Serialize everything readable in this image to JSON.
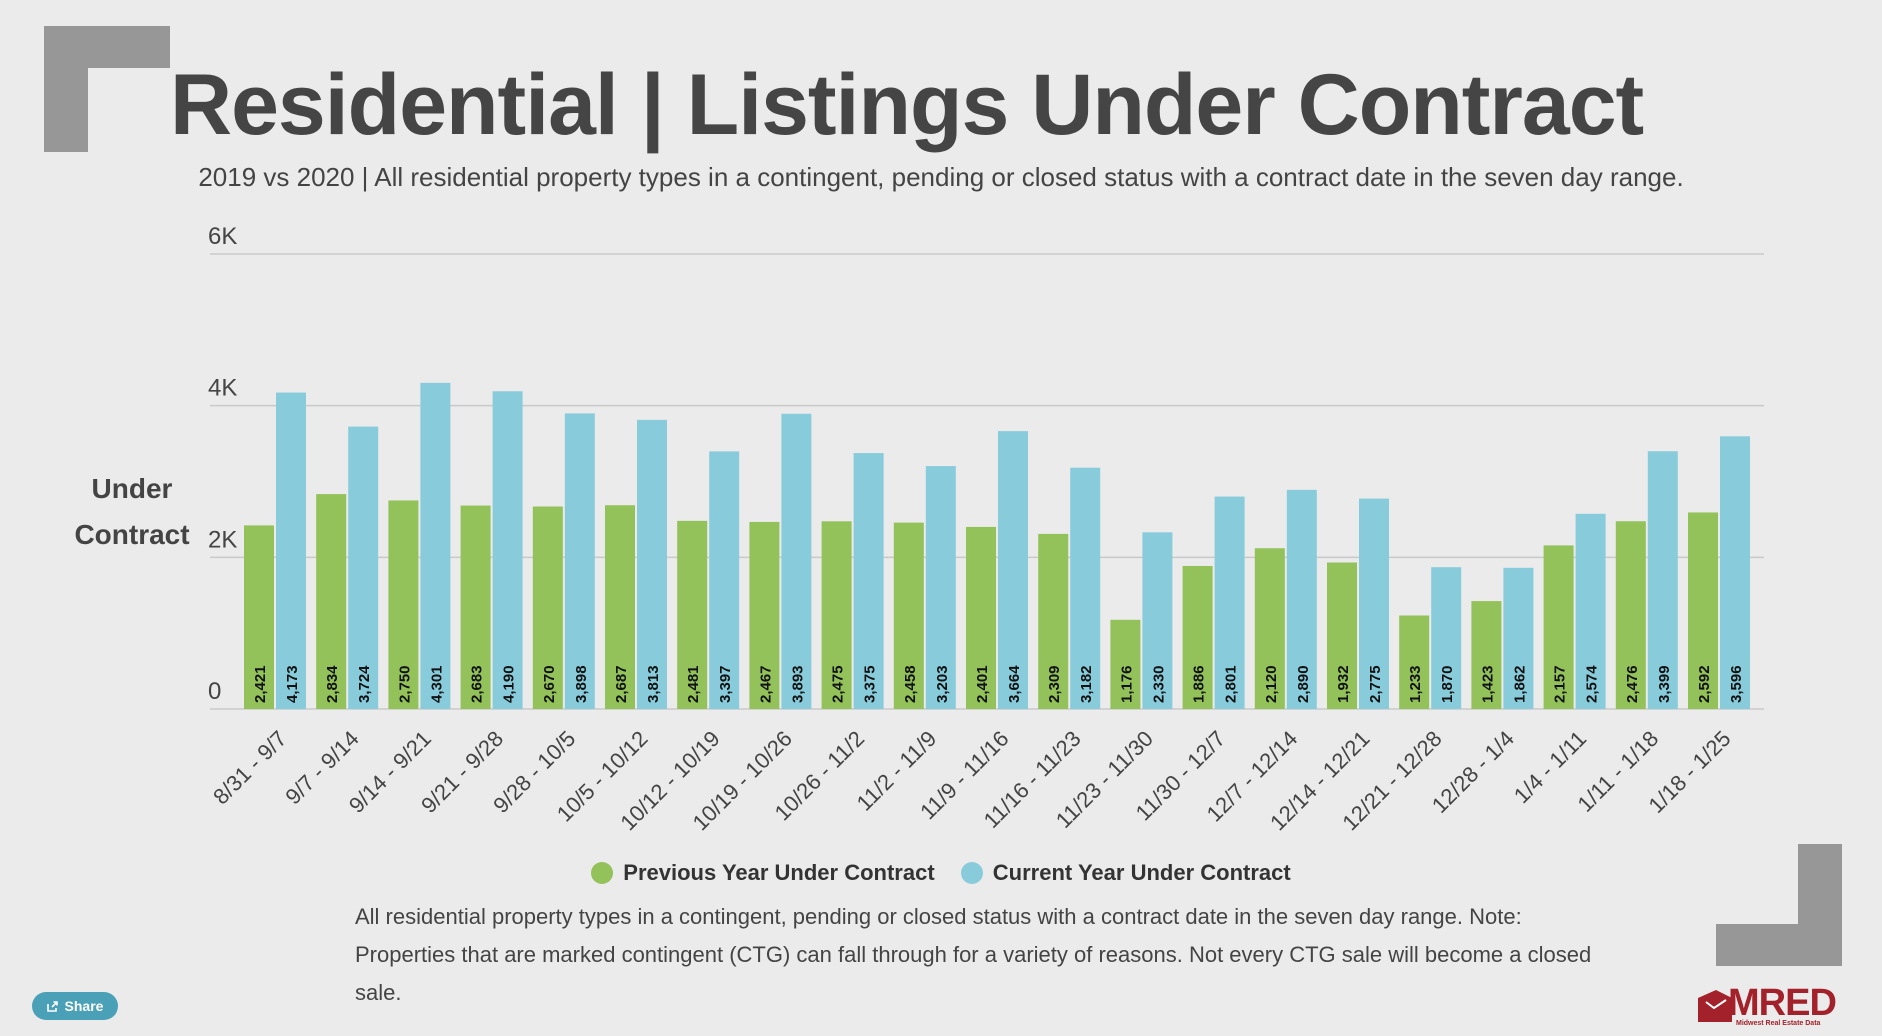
{
  "title": "Residential | Listings Under Contract",
  "subtitle": "2019 vs 2020 | All residential property types in a contingent, pending or closed status with a contract date in the seven day range.",
  "ylabel_line1": "Under",
  "ylabel_line2": "Contract",
  "footnote": "All residential property types in a contingent, pending or closed status with a contract date in the seven day range. Note: Properties that are marked contingent (CTG) can fall through for a variety of reasons. Not every CTG sale will become a closed sale.",
  "share_label": "Share",
  "logo_text": "MRED",
  "logo_sub": "Midwest Real Estate Data",
  "colors": {
    "previous": "#93c15a",
    "current": "#88ccdc",
    "grid": "#c9c9c9",
    "text": "#444444"
  },
  "chart_data": {
    "type": "bar",
    "title": "Residential | Listings Under Contract",
    "ylabel": "Under Contract",
    "xlabel": "",
    "ylim": [
      0,
      6000
    ],
    "yticks": [
      {
        "value": 0,
        "label": "0"
      },
      {
        "value": 2000,
        "label": "2K"
      },
      {
        "value": 4000,
        "label": "4K"
      },
      {
        "value": 6000,
        "label": "6K"
      }
    ],
    "categories": [
      "8/31 - 9/7",
      "9/7 - 9/14",
      "9/14 - 9/21",
      "9/21 - 9/28",
      "9/28 - 10/5",
      "10/5 - 10/12",
      "10/12 - 10/19",
      "10/19 - 10/26",
      "10/26 - 11/2",
      "11/2 - 11/9",
      "11/9 - 11/16",
      "11/16 - 11/23",
      "11/23 - 11/30",
      "11/30 - 12/7",
      "12/7 - 12/14",
      "12/14 - 12/21",
      "12/21 - 12/28",
      "12/28 - 1/4",
      "1/4 - 1/11",
      "1/11 - 1/18",
      "1/18 - 1/25"
    ],
    "series": [
      {
        "name": "Previous Year Under Contract",
        "values": [
          2421,
          2834,
          2750,
          2683,
          2670,
          2687,
          2481,
          2467,
          2475,
          2458,
          2401,
          2309,
          1176,
          1886,
          2120,
          1932,
          1233,
          1423,
          2157,
          2476,
          2592
        ]
      },
      {
        "name": "Current Year Under Contract",
        "values": [
          4173,
          3724,
          4301,
          4190,
          3898,
          3813,
          3397,
          3893,
          3375,
          3203,
          3664,
          3182,
          2330,
          2801,
          2890,
          2775,
          1870,
          1862,
          2574,
          3399,
          3596
        ]
      }
    ],
    "grid": true,
    "legend": "bottom-center"
  }
}
